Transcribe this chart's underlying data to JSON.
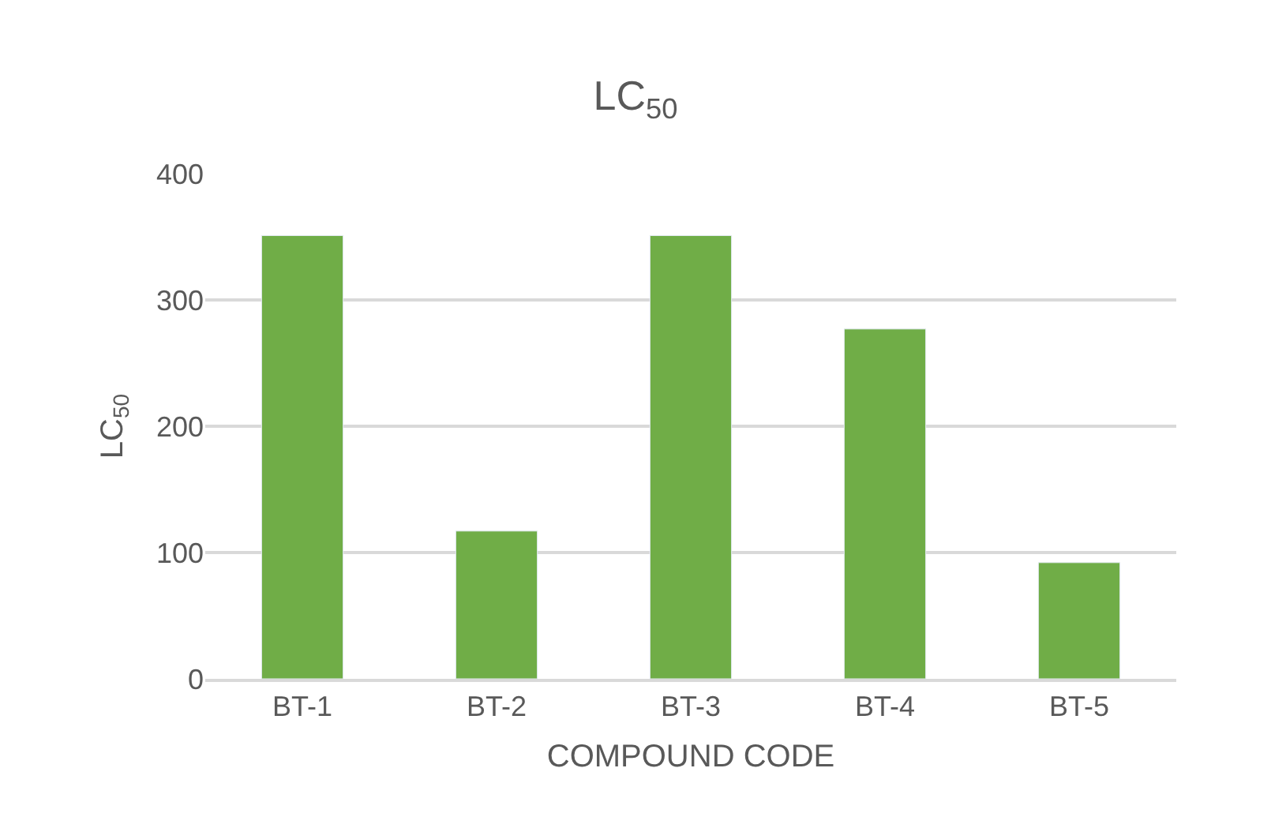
{
  "chart_data": {
    "type": "bar",
    "title": "LC$_{50}$",
    "xlabel": "COMPOUND CODE",
    "ylabel": "LC$_{50}$",
    "categories": [
      "BT-1",
      "BT-2",
      "BT-3",
      "BT-4",
      "BT-5"
    ],
    "values": [
      351,
      117,
      351,
      277,
      92
    ],
    "color": "#70ad47",
    "ylim": [
      0,
      400
    ],
    "yticks": [
      0,
      100,
      200,
      300,
      400
    ],
    "grid": "y"
  }
}
